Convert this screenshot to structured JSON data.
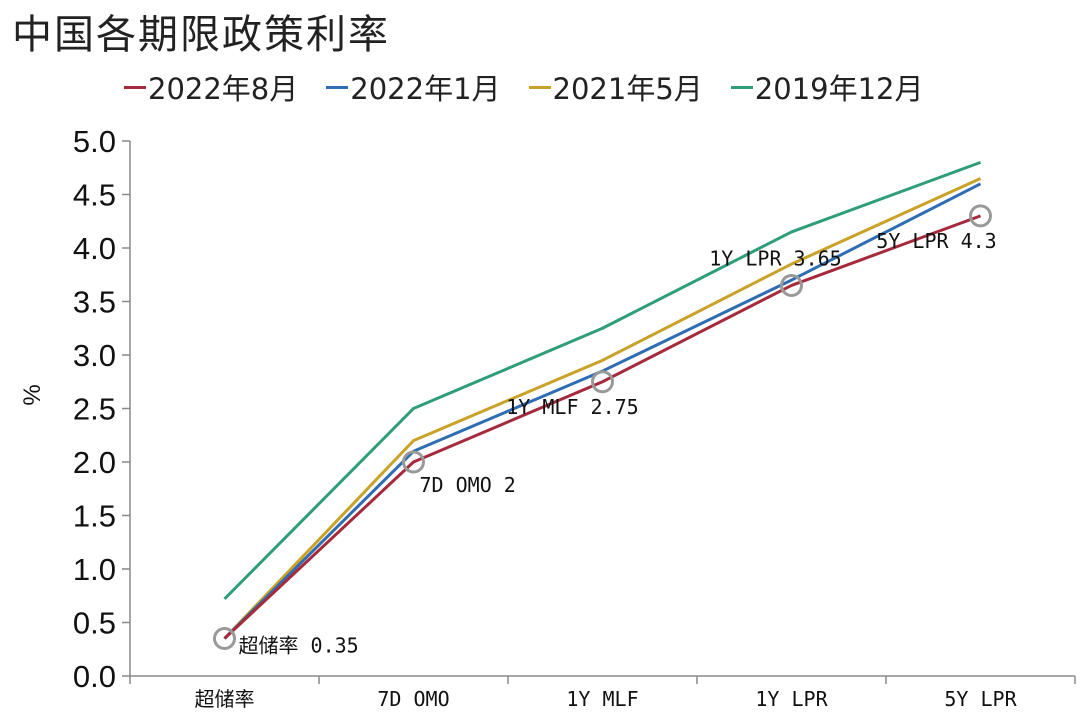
{
  "chart_data": {
    "type": "line",
    "title": "中国各期限政策利率",
    "xlabel": "",
    "ylabel": "%",
    "categories": [
      "超储率",
      "7D OMO",
      "1Y MLF",
      "1Y LPR",
      "5Y LPR"
    ],
    "ylim": [
      0,
      5
    ],
    "yticks": [
      "0.0",
      "0.5",
      "1.0",
      "1.5",
      "2.0",
      "2.5",
      "3.0",
      "3.5",
      "4.0",
      "4.5",
      "5.0"
    ],
    "legend_position": "top",
    "grid": false,
    "series": [
      {
        "name": "2022年8月",
        "color": "#A52A3C",
        "values": [
          0.35,
          2.0,
          2.75,
          3.65,
          4.3
        ]
      },
      {
        "name": "2022年1月",
        "color": "#2E6DB4",
        "values": [
          0.35,
          2.1,
          2.85,
          3.7,
          4.6
        ]
      },
      {
        "name": "2021年5月",
        "color": "#C9A227",
        "values": [
          0.35,
          2.2,
          2.95,
          3.85,
          4.65
        ]
      },
      {
        "name": "2019年12月",
        "color": "#2E9E7A",
        "values": [
          0.72,
          2.5,
          3.25,
          4.15,
          4.8
        ]
      }
    ],
    "markers": {
      "series": "2022年8月",
      "color": "#999999"
    },
    "data_labels": [
      "超储率 0.35",
      "7D OMO 2",
      "1Y MLF 2.75",
      "1Y LPR 3.65",
      "5Y LPR 4.3"
    ]
  }
}
